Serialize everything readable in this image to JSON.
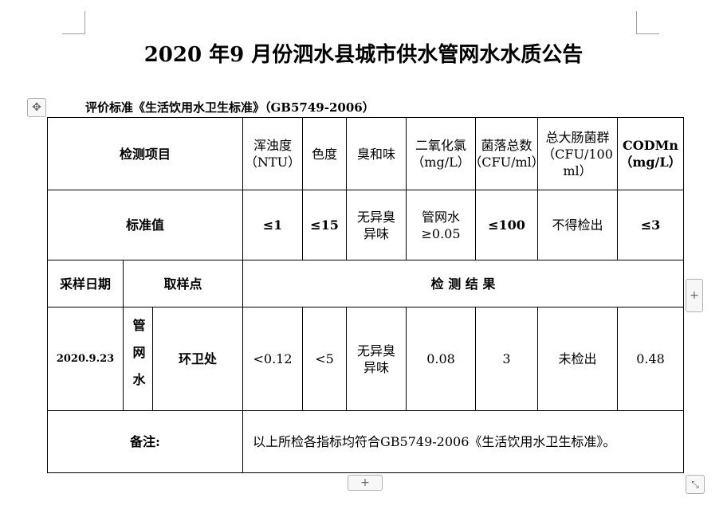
{
  "title": "2020 年9 月份泗水县城市供水管网水水质公告",
  "standard": "评价标准《生活饮用水卫生标准》（GB5749-2006）",
  "header": {
    "item": "检测项目",
    "cols": [
      "浑浊度（NTU）",
      "色度",
      "臭和味",
      "二氧化氯（mg/L）",
      "菌落总数（CFU/ml）",
      "总大肠菌群（CFU/100 ml）",
      "CODMn（mg/L）"
    ]
  },
  "standard_row": {
    "label": "标准值",
    "values": [
      "≤1",
      "≤15",
      "无异臭异味",
      "管网水≥0.05",
      "≤100",
      "不得检出",
      "≤3"
    ]
  },
  "sub_header": {
    "date": "采样日期",
    "point": "取样点",
    "results": "检 测 结 果"
  },
  "sample": {
    "date": "2020.9.23",
    "type": "管网水",
    "point": "环卫处",
    "values": [
      "<0.12",
      "<5",
      "无异臭异味",
      "0.08",
      "3",
      "未检出",
      "0.48"
    ]
  },
  "remark": {
    "label": "备注:",
    "text": "以上所检各指标均符合GB5749-2006《生活饮用水卫生标准》。"
  }
}
